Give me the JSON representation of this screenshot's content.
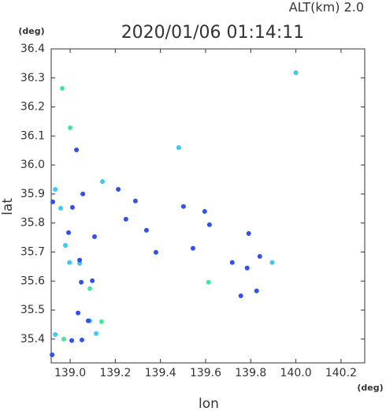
{
  "chart_data": {
    "type": "scatter",
    "title": "2020/01/06 01:14:11",
    "subtitle": "ALT(km) 2.0",
    "x_unit": "(deg)",
    "y_unit": "(deg)",
    "xlabel": "lon",
    "ylabel": "lat",
    "xlim": [
      138.916,
      140.305
    ],
    "ylim": [
      35.318,
      36.4
    ],
    "xticks": [
      {
        "value": 139,
        "label": "139.0"
      },
      139.2,
      139.4,
      139.6,
      139.8,
      {
        "value": 140,
        "label": "140.0"
      },
      140.2
    ],
    "yticks": [
      {
        "value": 35.4,
        "label": "35.4"
      },
      35.5,
      35.6,
      35.7,
      35.8,
      35.9,
      {
        "value": 36,
        "label": "36.0"
      },
      36.1,
      36.2,
      36.3,
      36.4
    ],
    "series": [
      {
        "color": "#3fc8f0",
        "x": [
          140.0,
          139.481,
          138.934,
          138.958,
          138.979,
          138.997,
          139.042,
          139.087,
          139.115,
          138.934,
          139.895,
          139.143
        ],
        "y": [
          36.318,
          36.06,
          35.916,
          35.851,
          35.723,
          35.664,
          35.661,
          35.463,
          35.419,
          35.416,
          35.664,
          35.943
        ]
      },
      {
        "color": "#40e8a0",
        "x": [
          138.965,
          139.0,
          139.087,
          139.139,
          138.972,
          139.613
        ],
        "y": [
          36.264,
          36.128,
          35.574,
          35.46,
          35.4,
          35.596
        ]
      },
      {
        "color": "#3050f0",
        "x": [
          138.923,
          139.01,
          139.056,
          139.028,
          138.993,
          139.042,
          139.108,
          139.049,
          139.098,
          139.035,
          139.08,
          139.007,
          139.052,
          138.92,
          139.213,
          139.289,
          139.338,
          139.502,
          139.596,
          139.617,
          139.791,
          139.784,
          139.84,
          139.826,
          139.756,
          139.718,
          139.38,
          139.544,
          139.247
        ],
        "y": [
          35.873,
          35.854,
          35.9,
          36.052,
          35.767,
          35.672,
          35.753,
          35.596,
          35.601,
          35.49,
          35.463,
          35.395,
          35.397,
          35.346,
          35.916,
          35.876,
          35.775,
          35.857,
          35.84,
          35.794,
          35.764,
          35.645,
          35.685,
          35.566,
          35.549,
          35.664,
          35.699,
          35.713,
          35.813
        ]
      }
    ]
  }
}
